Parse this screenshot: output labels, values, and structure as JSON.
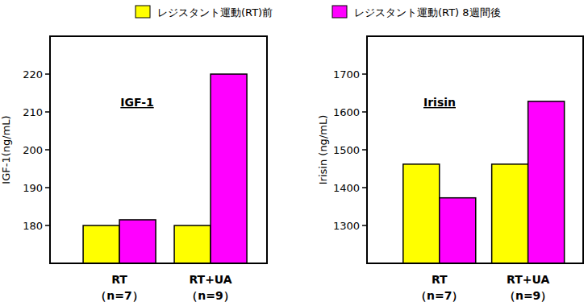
{
  "chart_data": [
    {
      "type": "bar",
      "title": "IGF-1",
      "y_label": "IGF-1(ng/mL)",
      "categories": [
        "RT\n（n=7）",
        "RT+UA\n（n=9）"
      ],
      "series": [
        {
          "name": "レジスタント運動(RT)前",
          "color": "#ffff00",
          "values": [
            180,
            180
          ]
        },
        {
          "name": "レジスタント運動(RT) 8週間後",
          "color": "#ff00ff",
          "values": [
            181.5,
            220
          ]
        }
      ],
      "ylim": [
        170,
        230
      ],
      "yticks": [
        180,
        190,
        200,
        210,
        220
      ],
      "grid": false,
      "legend": "top"
    },
    {
      "type": "bar",
      "title": "Irisin",
      "y_label": "Irisin (ng/mL)",
      "categories": [
        "RT\n（n=7）",
        "RT+UA\n（n=9）"
      ],
      "series": [
        {
          "name": "レジスタント運動(RT)前",
          "color": "#ffff00",
          "values": [
            1462,
            1462
          ]
        },
        {
          "name": "レジスタント運動(RT) 8週間後",
          "color": "#ff00ff",
          "values": [
            1373,
            1628
          ]
        }
      ],
      "ylim": [
        1200,
        1800
      ],
      "yticks": [
        1300,
        1400,
        1500,
        1600,
        1700
      ],
      "grid": false,
      "legend": "top"
    }
  ]
}
